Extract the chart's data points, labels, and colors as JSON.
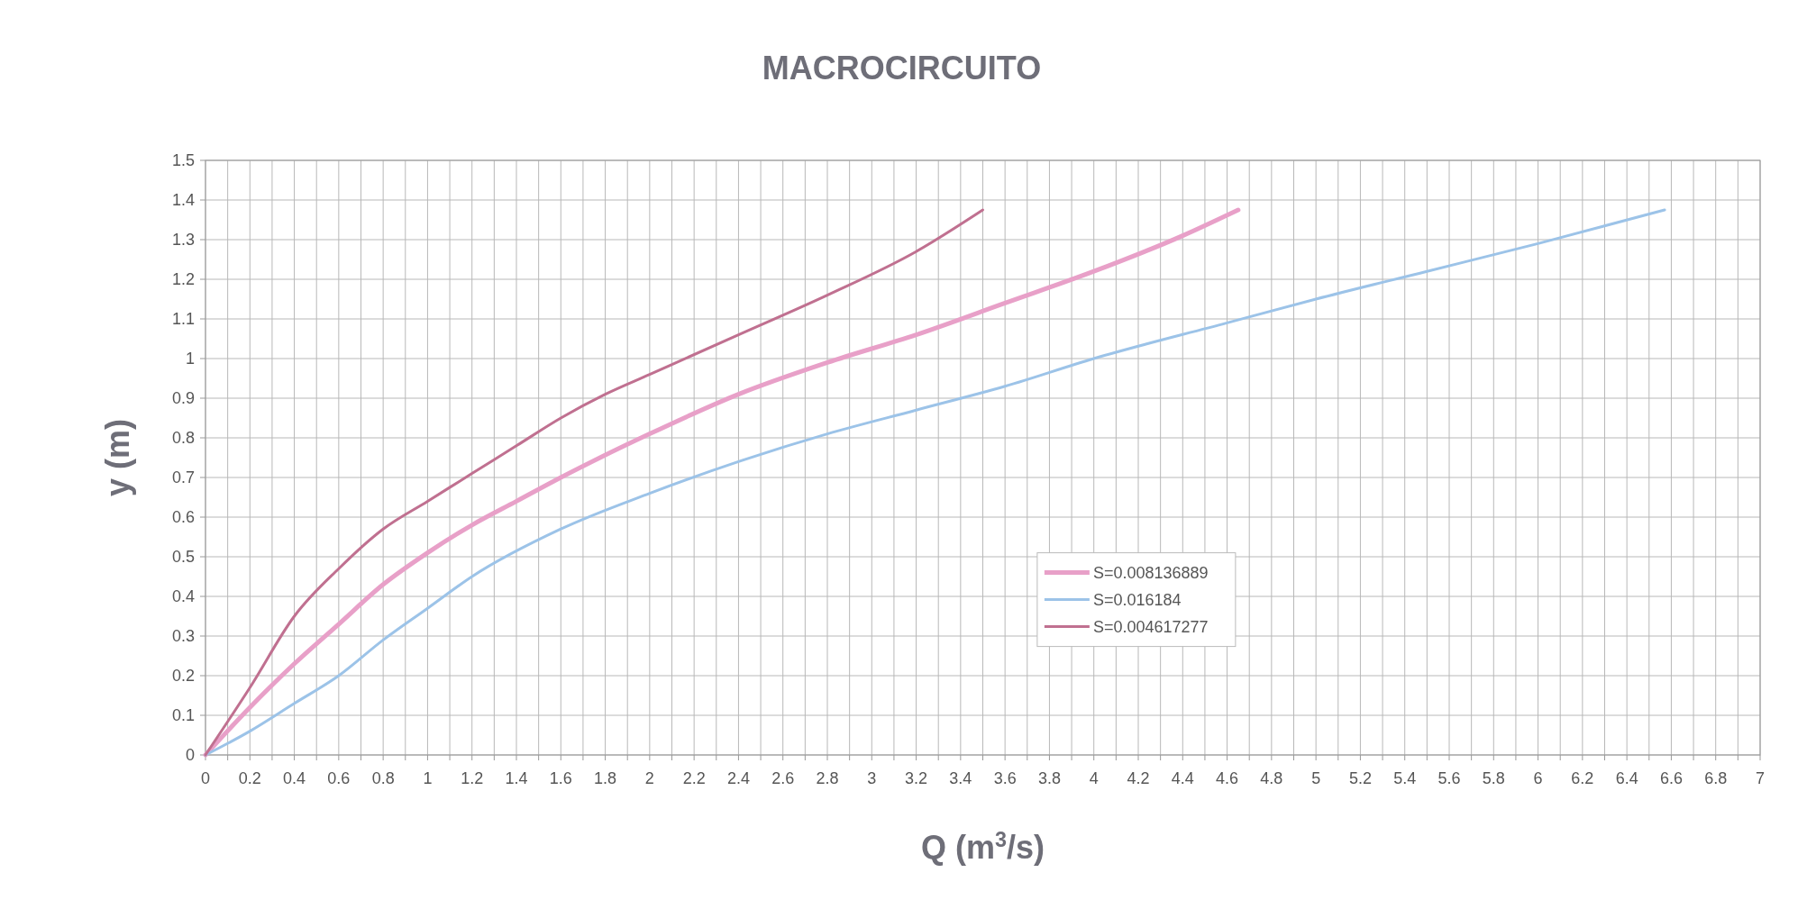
{
  "chart_data": {
    "type": "line",
    "title": "MACROCIRCUITO",
    "xlabel": "Q (m$^{3}$/s)",
    "ylabel": "y (m)",
    "xlim": [
      0,
      7
    ],
    "ylim": [
      0,
      1.5
    ],
    "xticks": [
      0,
      {
        "value": 0.1,
        "label": null
      },
      0.2,
      {
        "value": 0.3,
        "label": null
      },
      0.4,
      {
        "value": 0.5,
        "label": null
      },
      0.6,
      {
        "value": 0.7,
        "label": null
      },
      0.8,
      {
        "value": 0.9,
        "label": null
      },
      1,
      {
        "value": 1.1,
        "label": null
      },
      1.2,
      {
        "value": 1.3,
        "label": null
      },
      1.4,
      {
        "value": 1.5,
        "label": null
      },
      1.6,
      {
        "value": 1.7,
        "label": null
      },
      1.8,
      {
        "value": 1.9,
        "label": null
      },
      2,
      {
        "value": 2.1,
        "label": null
      },
      2.2,
      {
        "value": 2.3,
        "label": null
      },
      2.4,
      {
        "value": 2.5,
        "label": null
      },
      2.6,
      {
        "value": 2.7,
        "label": null
      },
      2.8,
      {
        "value": 2.9,
        "label": null
      },
      3,
      {
        "value": 3.1,
        "label": null
      },
      3.2,
      {
        "value": 3.3,
        "label": null
      },
      3.4,
      {
        "value": 3.5,
        "label": null
      },
      3.6,
      {
        "value": 3.7,
        "label": null
      },
      3.8,
      {
        "value": 3.9,
        "label": null
      },
      4,
      {
        "value": 4.1,
        "label": null
      },
      4.2,
      {
        "value": 4.3,
        "label": null
      },
      4.4,
      {
        "value": 4.5,
        "label": null
      },
      4.6,
      {
        "value": 4.7,
        "label": null
      },
      4.8,
      {
        "value": 4.9,
        "label": null
      },
      5,
      {
        "value": 5.1,
        "label": null
      },
      5.2,
      {
        "value": 5.3,
        "label": null
      },
      5.4,
      {
        "value": 5.5,
        "label": null
      },
      5.6,
      {
        "value": 5.7,
        "label": null
      },
      5.8,
      {
        "value": 5.9,
        "label": null
      },
      6,
      {
        "value": 6.1,
        "label": null
      },
      6.2,
      {
        "value": 6.3,
        "label": null
      },
      6.4,
      {
        "value": 6.5,
        "label": null
      },
      6.6,
      {
        "value": 6.7,
        "label": null
      },
      6.8,
      {
        "value": 6.9,
        "label": null
      },
      7
    ],
    "yticks": [
      0,
      0.1,
      0.2,
      0.3,
      0.4,
      0.5,
      0.6,
      0.7,
      0.8,
      0.9,
      1,
      1.1,
      1.2,
      1.3,
      1.4,
      1.5
    ],
    "grid": true,
    "legend": "center",
    "marker": "none",
    "line_style": "solid",
    "series": [
      {
        "name": "S=0.008136889",
        "color": "#e8a0c8",
        "x": [
          0,
          0.2,
          0.4,
          0.6,
          0.8,
          1,
          1.2,
          1.4,
          1.6,
          2,
          2.4,
          2.8,
          3.2,
          3.6,
          4,
          4.4,
          4.65
        ],
        "values": [
          0,
          0.12,
          0.23,
          0.33,
          0.43,
          0.51,
          0.58,
          0.64,
          0.7,
          0.81,
          0.91,
          0.99,
          1.06,
          1.14,
          1.22,
          1.31,
          1.375
        ]
      },
      {
        "name": "S=0.016184",
        "color": "#9cc3e8",
        "x": [
          0,
          0.2,
          0.4,
          0.6,
          0.8,
          1,
          1.2,
          1.6,
          2,
          2.4,
          2.8,
          3.2,
          3.6,
          4,
          4.6,
          5,
          5.5,
          6,
          6.57
        ],
        "values": [
          0,
          0.06,
          0.13,
          0.2,
          0.29,
          0.37,
          0.45,
          0.57,
          0.66,
          0.74,
          0.81,
          0.87,
          0.93,
          1,
          1.09,
          1.15,
          1.22,
          1.29,
          1.375
        ]
      },
      {
        "name": "S=0.004617277",
        "color": "#c07090",
        "x": [
          0,
          0.2,
          0.4,
          0.6,
          0.8,
          1,
          1.2,
          1.4,
          1.6,
          1.8,
          2,
          2.4,
          2.8,
          3.2,
          3.5
        ],
        "values": [
          0,
          0.17,
          0.35,
          0.47,
          0.57,
          0.64,
          0.71,
          0.78,
          0.85,
          0.91,
          0.96,
          1.06,
          1.16,
          1.27,
          1.375
        ]
      }
    ]
  }
}
